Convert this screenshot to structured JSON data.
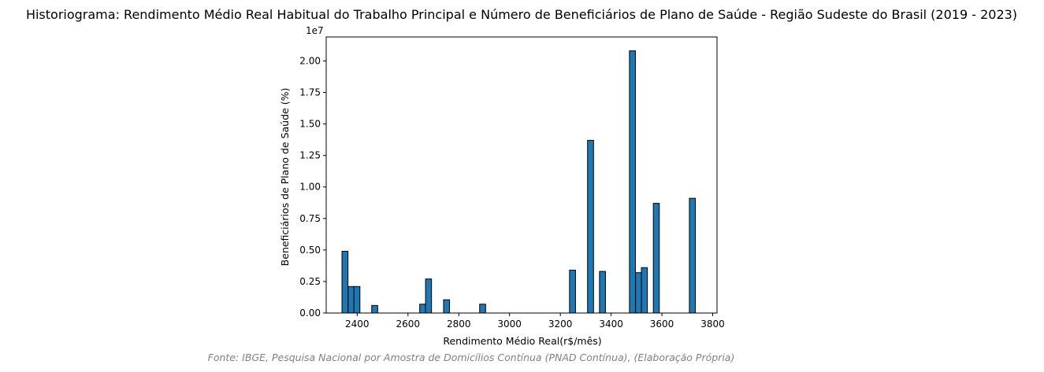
{
  "chart_data": {
    "type": "bar",
    "title": "Historiograma: Rendimento Médio Real Habitual do Trabalho Principal e Número de Beneficiários de Plano de Saúde - Região Sudeste do Brasil (2019 - 2023)",
    "xlabel": "Rendimento Médio Real(r$/mês)",
    "ylabel": "Beneficiários de Plano de Saúde (%)",
    "y_offset_label": "1e7",
    "xlim": [
      2278,
      3817
    ],
    "ylim": [
      0,
      2.19
    ],
    "x_ticks": [
      2400,
      2600,
      2800,
      3000,
      3200,
      3400,
      3600,
      3800
    ],
    "y_ticks": [
      0.0,
      0.25,
      0.5,
      0.75,
      1.0,
      1.25,
      1.5,
      1.75,
      2.0
    ],
    "y_tick_labels": [
      "0.00",
      "0.25",
      "0.50",
      "0.75",
      "1.00",
      "1.25",
      "1.50",
      "1.75",
      "2.00"
    ],
    "bar_width": 23.5,
    "bar_color": "#1f77b4",
    "edge_color": "#000000",
    "grid": false,
    "bars": [
      {
        "x": 2352,
        "value": 0.49
      },
      {
        "x": 2376,
        "value": 0.21
      },
      {
        "x": 2399,
        "value": 0.21
      },
      {
        "x": 2469,
        "value": 0.06
      },
      {
        "x": 2658,
        "value": 0.07
      },
      {
        "x": 2681,
        "value": 0.27
      },
      {
        "x": 2752,
        "value": 0.105
      },
      {
        "x": 2894,
        "value": 0.07
      },
      {
        "x": 3248,
        "value": 0.34
      },
      {
        "x": 3319,
        "value": 1.37
      },
      {
        "x": 3366,
        "value": 0.33
      },
      {
        "x": 3484,
        "value": 2.08
      },
      {
        "x": 3508,
        "value": 0.32
      },
      {
        "x": 3531,
        "value": 0.36
      },
      {
        "x": 3578,
        "value": 0.87
      },
      {
        "x": 3720,
        "value": 0.91
      }
    ]
  },
  "source_note": "Fonte: IBGE, Pesquisa Nacional por Amostra de Domicílios Contínua (PNAD Contínua), (Elaboração Própria)"
}
